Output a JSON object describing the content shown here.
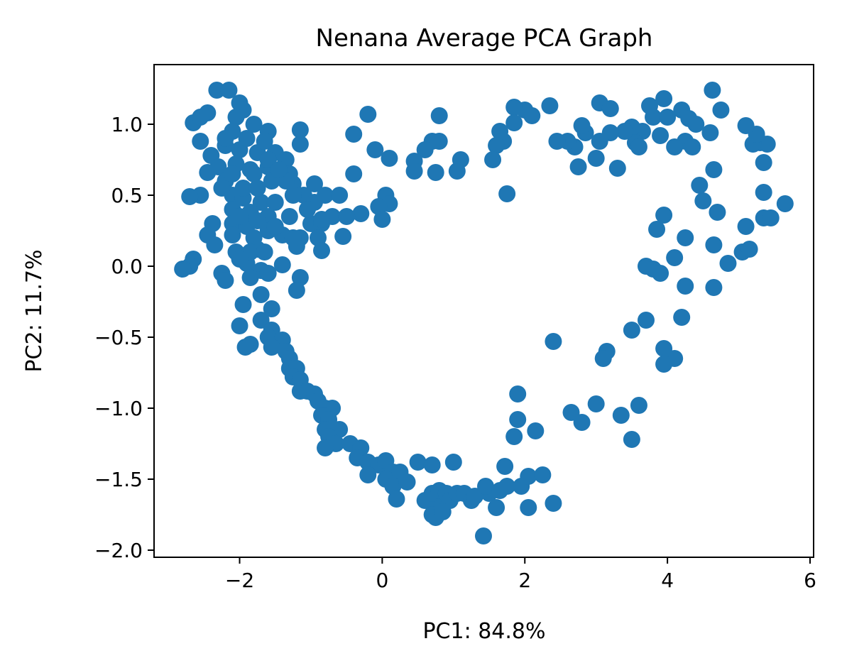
{
  "chart_data": {
    "type": "scatter",
    "title": "Nenana Average PCA Graph",
    "xlabel": "PC1: 84.8%",
    "ylabel": "PC2: 11.7%",
    "xlim": [
      -3.2,
      6.05
    ],
    "ylim": [
      -2.05,
      1.42
    ],
    "x_ticks": [
      -2,
      0,
      2,
      4,
      6
    ],
    "y_ticks": [
      -2.0,
      -1.5,
      -1.0,
      -0.5,
      0.0,
      0.5,
      1.0
    ],
    "x_tick_labels": [
      "−2",
      "0",
      "2",
      "4",
      "6"
    ],
    "y_tick_labels": [
      "−2.0",
      "−1.5",
      "−1.0",
      "−0.5",
      "0.0",
      "0.5",
      "1.0"
    ],
    "grid": false,
    "marker_color": "#1f77b4",
    "series": [
      {
        "points": [
          [
            -2.32,
            1.24
          ],
          [
            -2.15,
            1.24
          ],
          [
            -2.65,
            1.01
          ],
          [
            -2.55,
            1.05
          ],
          [
            -2.45,
            1.08
          ],
          [
            -2.0,
            1.15
          ],
          [
            -1.95,
            1.1
          ],
          [
            -2.05,
            1.05
          ],
          [
            -1.8,
            1.0
          ],
          [
            -1.6,
            0.95
          ],
          [
            -1.15,
            0.96
          ],
          [
            -1.15,
            0.86
          ],
          [
            -2.55,
            0.88
          ],
          [
            -2.2,
            0.85
          ],
          [
            -2.0,
            0.82
          ],
          [
            -1.75,
            0.8
          ],
          [
            -1.5,
            0.8
          ],
          [
            -1.35,
            0.75
          ],
          [
            -2.4,
            0.78
          ],
          [
            -2.3,
            0.7
          ],
          [
            -2.05,
            0.72
          ],
          [
            -1.85,
            0.68
          ],
          [
            -1.6,
            0.7
          ],
          [
            -2.45,
            0.66
          ],
          [
            -2.2,
            0.6
          ],
          [
            -1.3,
            0.65
          ],
          [
            -1.25,
            0.58
          ],
          [
            -0.95,
            0.58
          ],
          [
            -1.1,
            0.5
          ],
          [
            -0.8,
            0.5
          ],
          [
            -2.55,
            0.5
          ],
          [
            -2.7,
            0.49
          ],
          [
            -2.1,
            0.5
          ],
          [
            -1.95,
            0.48
          ],
          [
            -1.7,
            0.45
          ],
          [
            -1.5,
            0.45
          ],
          [
            -2.1,
            0.4
          ],
          [
            -1.85,
            0.38
          ],
          [
            -1.6,
            0.35
          ],
          [
            -1.3,
            0.35
          ],
          [
            -2.38,
            0.3
          ],
          [
            -2.1,
            0.3
          ],
          [
            -1.9,
            0.28
          ],
          [
            -1.6,
            0.25
          ],
          [
            -1.0,
            0.3
          ],
          [
            -0.85,
            0.3
          ],
          [
            -0.7,
            0.35
          ],
          [
            -2.45,
            0.22
          ],
          [
            -2.1,
            0.22
          ],
          [
            -1.8,
            0.2
          ],
          [
            -1.4,
            0.22
          ],
          [
            -1.15,
            0.2
          ],
          [
            -0.9,
            0.2
          ],
          [
            -2.35,
            0.15
          ],
          [
            -2.05,
            0.1
          ],
          [
            -1.75,
            0.12
          ],
          [
            -1.2,
            0.14
          ],
          [
            -0.85,
            0.11
          ],
          [
            -2.65,
            0.05
          ],
          [
            -2.7,
            0.0
          ],
          [
            -2.8,
            -0.02
          ],
          [
            -1.9,
            0.02
          ],
          [
            -1.7,
            -0.03
          ],
          [
            -1.4,
            0.01
          ],
          [
            -2.25,
            -0.05
          ],
          [
            -2.2,
            -0.1
          ],
          [
            -1.85,
            -0.08
          ],
          [
            -1.6,
            -0.05
          ],
          [
            -1.15,
            -0.08
          ],
          [
            -1.2,
            -0.17
          ],
          [
            -1.7,
            -0.2
          ],
          [
            -1.95,
            -0.27
          ],
          [
            -1.55,
            -0.3
          ],
          [
            -1.7,
            -0.38
          ],
          [
            -1.55,
            -0.45
          ],
          [
            -2.0,
            -0.42
          ],
          [
            -1.6,
            -0.5
          ],
          [
            -1.4,
            -0.52
          ],
          [
            -1.85,
            -0.55
          ],
          [
            -1.92,
            -0.57
          ],
          [
            -1.55,
            -0.57
          ],
          [
            -1.35,
            -0.6
          ],
          [
            -1.3,
            -0.65
          ],
          [
            -1.3,
            -0.72
          ],
          [
            -1.2,
            -0.72
          ],
          [
            -1.25,
            -0.78
          ],
          [
            -1.15,
            -0.8
          ],
          [
            -1.15,
            -0.88
          ],
          [
            -1.05,
            -0.88
          ],
          [
            -0.95,
            -0.9
          ],
          [
            -0.9,
            -0.95
          ],
          [
            -0.8,
            -1.0
          ],
          [
            -0.7,
            -1.0
          ],
          [
            -0.85,
            -1.05
          ],
          [
            -0.75,
            -1.08
          ],
          [
            -0.8,
            -1.15
          ],
          [
            -0.6,
            -1.15
          ],
          [
            -0.75,
            -1.2
          ],
          [
            -0.65,
            -1.25
          ],
          [
            -0.8,
            -1.28
          ],
          [
            -0.45,
            -1.25
          ],
          [
            -0.3,
            -1.28
          ],
          [
            -0.35,
            -1.35
          ],
          [
            -0.2,
            -1.38
          ],
          [
            -0.05,
            -1.4
          ],
          [
            0.05,
            -1.37
          ],
          [
            0.15,
            -1.45
          ],
          [
            -0.2,
            -1.47
          ],
          [
            0.05,
            -1.5
          ],
          [
            0.25,
            -1.45
          ],
          [
            0.15,
            -1.55
          ],
          [
            0.35,
            -1.52
          ],
          [
            0.2,
            -1.64
          ],
          [
            0.5,
            -1.38
          ],
          [
            0.7,
            -1.4
          ],
          [
            1.0,
            -1.38
          ],
          [
            0.6,
            -1.65
          ],
          [
            0.75,
            -1.65
          ],
          [
            0.7,
            -1.6
          ],
          [
            0.8,
            -1.58
          ],
          [
            0.9,
            -1.6
          ],
          [
            0.95,
            -1.65
          ],
          [
            0.7,
            -1.75
          ],
          [
            0.75,
            -1.77
          ],
          [
            0.85,
            -1.73
          ],
          [
            1.05,
            -1.6
          ],
          [
            1.15,
            -1.6
          ],
          [
            1.25,
            -1.65
          ],
          [
            1.3,
            -1.62
          ],
          [
            1.5,
            -1.6
          ],
          [
            1.6,
            -1.7
          ],
          [
            1.45,
            -1.55
          ],
          [
            1.65,
            -1.58
          ],
          [
            1.75,
            -1.55
          ],
          [
            1.95,
            -1.55
          ],
          [
            2.05,
            -1.48
          ],
          [
            2.25,
            -1.47
          ],
          [
            2.05,
            -1.7
          ],
          [
            2.4,
            -1.67
          ],
          [
            1.42,
            -1.9
          ],
          [
            1.72,
            -1.41
          ],
          [
            1.85,
            -1.2
          ],
          [
            1.9,
            -1.08
          ],
          [
            1.9,
            -0.9
          ],
          [
            2.15,
            -1.16
          ],
          [
            2.65,
            -1.03
          ],
          [
            2.8,
            -1.1
          ],
          [
            3.0,
            -0.97
          ],
          [
            3.35,
            -1.05
          ],
          [
            3.6,
            -0.98
          ],
          [
            3.5,
            -1.22
          ],
          [
            2.4,
            -0.53
          ],
          [
            3.15,
            -0.6
          ],
          [
            3.1,
            -0.65
          ],
          [
            3.5,
            -0.45
          ],
          [
            3.7,
            -0.38
          ],
          [
            3.95,
            -0.58
          ],
          [
            4.1,
            -0.65
          ],
          [
            3.95,
            -0.69
          ],
          [
            4.2,
            -0.36
          ],
          [
            3.7,
            0.0
          ],
          [
            3.8,
            -0.02
          ],
          [
            3.9,
            -0.05
          ],
          [
            4.25,
            -0.14
          ],
          [
            4.65,
            -0.15
          ],
          [
            4.25,
            0.2
          ],
          [
            4.1,
            0.06
          ],
          [
            4.65,
            0.15
          ],
          [
            4.85,
            0.02
          ],
          [
            5.05,
            0.1
          ],
          [
            5.15,
            0.12
          ],
          [
            5.1,
            0.28
          ],
          [
            3.85,
            0.26
          ],
          [
            3.95,
            0.36
          ],
          [
            4.7,
            0.38
          ],
          [
            4.5,
            0.46
          ],
          [
            4.45,
            0.57
          ],
          [
            4.65,
            0.68
          ],
          [
            5.35,
            0.52
          ],
          [
            5.35,
            0.34
          ],
          [
            5.45,
            0.34
          ],
          [
            5.65,
            0.44
          ],
          [
            5.35,
            0.73
          ],
          [
            5.3,
            0.87
          ],
          [
            5.4,
            0.86
          ],
          [
            5.2,
            0.86
          ],
          [
            5.25,
            0.93
          ],
          [
            5.1,
            0.99
          ],
          [
            4.25,
            0.88
          ],
          [
            4.1,
            0.84
          ],
          [
            4.35,
            0.84
          ],
          [
            4.2,
            1.1
          ],
          [
            4.3,
            1.04
          ],
          [
            4.4,
            1.0
          ],
          [
            4.6,
            0.94
          ],
          [
            4.75,
            1.1
          ],
          [
            4.63,
            1.24
          ],
          [
            3.95,
            1.18
          ],
          [
            3.8,
            1.05
          ],
          [
            4.0,
            1.05
          ],
          [
            3.75,
            1.13
          ],
          [
            3.65,
            0.95
          ],
          [
            3.5,
            0.98
          ],
          [
            3.55,
            0.87
          ],
          [
            3.6,
            0.84
          ],
          [
            3.9,
            0.92
          ],
          [
            3.4,
            0.95
          ],
          [
            3.2,
            0.94
          ],
          [
            3.05,
            1.15
          ],
          [
            3.2,
            1.11
          ],
          [
            3.3,
            0.69
          ],
          [
            3.05,
            0.88
          ],
          [
            3.0,
            0.76
          ],
          [
            2.85,
            0.94
          ],
          [
            2.8,
            0.99
          ],
          [
            2.7,
            0.84
          ],
          [
            2.6,
            0.88
          ],
          [
            2.45,
            0.88
          ],
          [
            2.75,
            0.7
          ],
          [
            2.35,
            1.13
          ],
          [
            2.0,
            1.1
          ],
          [
            2.1,
            1.06
          ],
          [
            1.85,
            1.12
          ],
          [
            1.85,
            1.01
          ],
          [
            1.75,
            0.51
          ],
          [
            1.65,
            0.95
          ],
          [
            1.7,
            0.88
          ],
          [
            1.6,
            0.85
          ],
          [
            1.55,
            0.75
          ],
          [
            1.1,
            0.75
          ],
          [
            1.05,
            0.67
          ],
          [
            0.8,
            0.88
          ],
          [
            0.7,
            0.88
          ],
          [
            0.6,
            0.82
          ],
          [
            0.75,
            0.66
          ],
          [
            0.45,
            0.74
          ],
          [
            0.45,
            0.67
          ],
          [
            0.8,
            1.06
          ],
          [
            0.1,
            0.76
          ],
          [
            -0.1,
            0.82
          ],
          [
            -0.2,
            1.07
          ],
          [
            -0.4,
            0.93
          ],
          [
            -0.4,
            0.65
          ],
          [
            0.05,
            0.5
          ],
          [
            0.1,
            0.44
          ],
          [
            -0.05,
            0.42
          ],
          [
            0.0,
            0.33
          ],
          [
            -0.3,
            0.37
          ],
          [
            -0.5,
            0.35
          ],
          [
            -0.6,
            0.5
          ],
          [
            -0.55,
            0.21
          ],
          [
            -0.85,
            0.33
          ],
          [
            -0.95,
            0.45
          ],
          [
            -1.05,
            0.4
          ],
          [
            -1.25,
            0.5
          ],
          [
            -1.35,
            0.6
          ],
          [
            -1.55,
            0.6
          ],
          [
            -1.25,
            0.2
          ],
          [
            -1.5,
            0.28
          ],
          [
            -1.75,
            0.32
          ],
          [
            -2.0,
            0.35
          ],
          [
            -1.95,
            0.55
          ],
          [
            -1.75,
            0.55
          ],
          [
            -1.8,
            0.65
          ],
          [
            -2.1,
            0.65
          ],
          [
            -2.25,
            0.55
          ],
          [
            -1.6,
            0.75
          ],
          [
            -1.45,
            0.68
          ],
          [
            -1.65,
            0.88
          ],
          [
            -1.9,
            0.9
          ],
          [
            -2.1,
            0.95
          ],
          [
            -2.2,
            0.9
          ],
          [
            -1.85,
            0.1
          ],
          [
            -2.0,
            0.05
          ],
          [
            -1.65,
            0.1
          ]
        ]
      }
    ]
  }
}
